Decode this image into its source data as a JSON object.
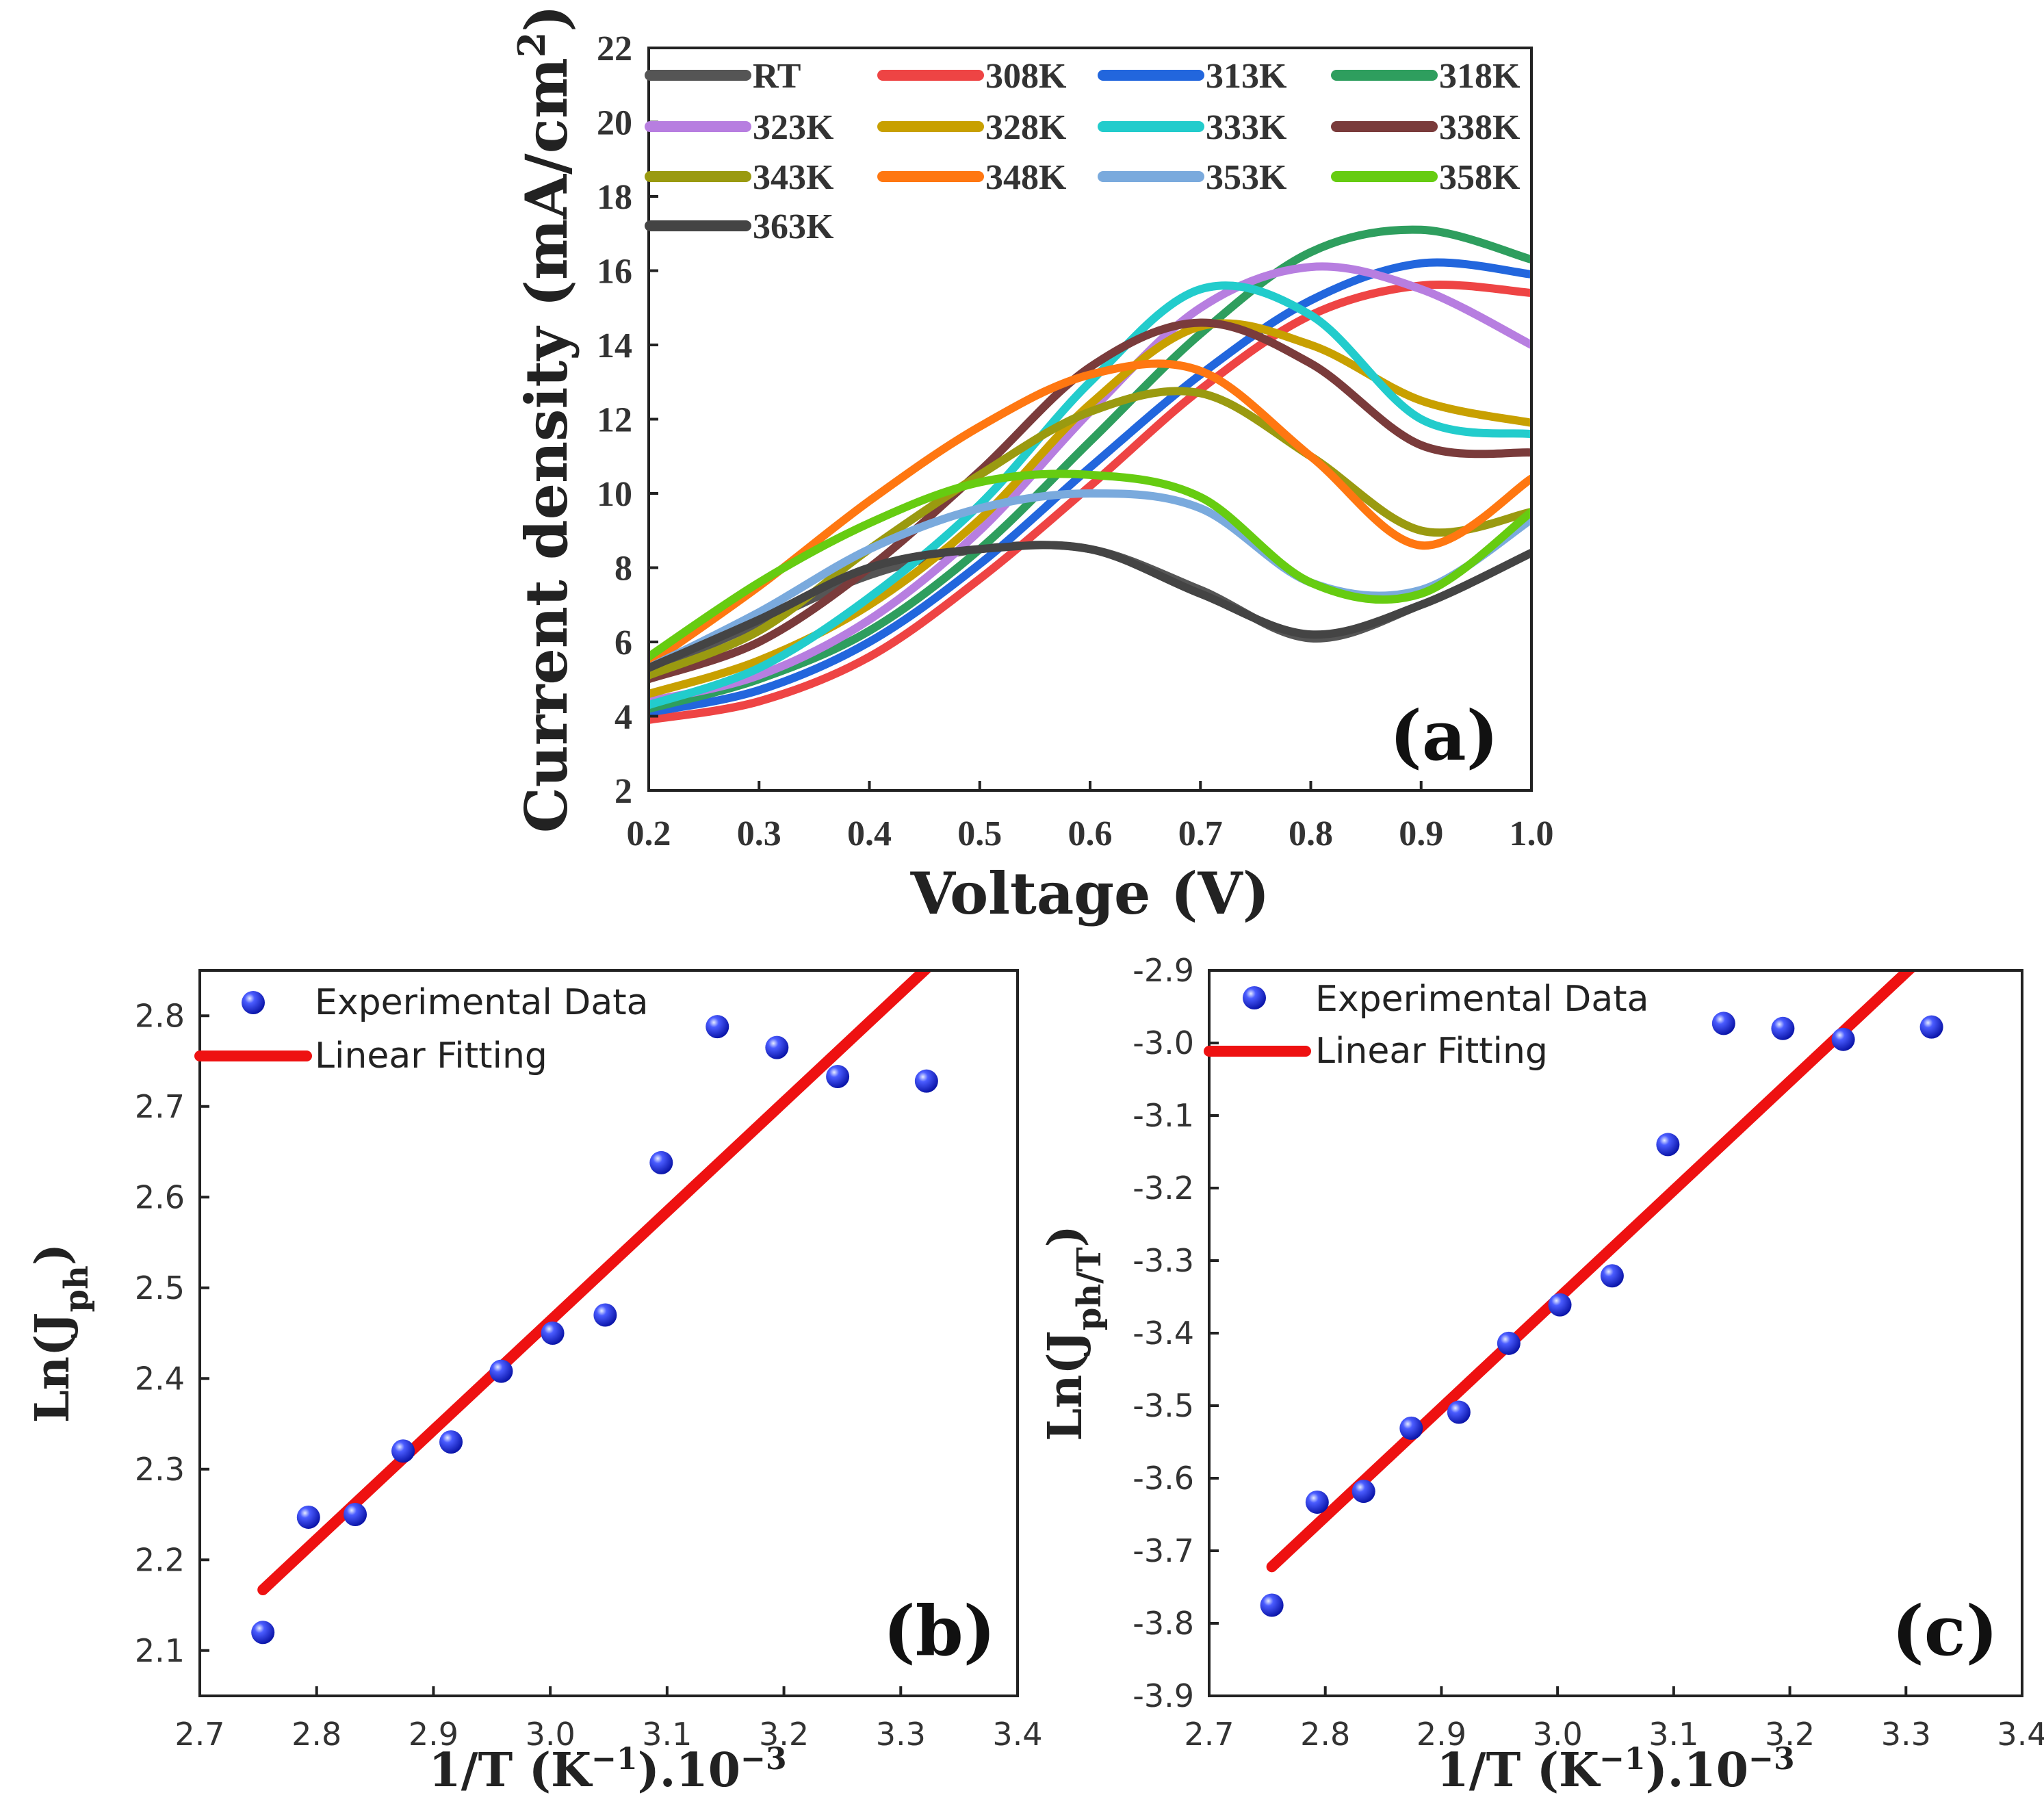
{
  "chart_data": [
    {
      "type": "line",
      "panel_label": "(a)",
      "xlabel": "Voltage (V)",
      "ylabel_main": "Current density (mA/cm",
      "ylabel_sup": "2",
      "ylabel_tail": ")",
      "xlim": [
        0.2,
        1.0
      ],
      "ylim": [
        2,
        22
      ],
      "xticks": [
        "0.2",
        "0.3",
        "0.4",
        "0.5",
        "0.6",
        "0.7",
        "0.8",
        "0.9",
        "1.0"
      ],
      "yticks": [
        "2",
        "4",
        "6",
        "8",
        "10",
        "12",
        "14",
        "16",
        "18",
        "20",
        "22"
      ],
      "series": [
        {
          "name": "RT",
          "color": "#555555",
          "x": [
            0.2,
            0.3,
            0.4,
            0.5,
            0.6,
            0.7,
            0.8,
            0.9,
            1.0
          ],
          "y": [
            5.2,
            6.5,
            7.8,
            8.5,
            8.5,
            7.4,
            6.1,
            7.0,
            8.4
          ]
        },
        {
          "name": "308K",
          "color": "#ee4444",
          "x": [
            0.2,
            0.3,
            0.4,
            0.5,
            0.6,
            0.7,
            0.8,
            0.9,
            1.0
          ],
          "y": [
            3.9,
            4.4,
            5.6,
            7.7,
            10.2,
            12.8,
            14.8,
            15.6,
            15.4
          ]
        },
        {
          "name": "313K",
          "color": "#2266dd",
          "x": [
            0.2,
            0.3,
            0.4,
            0.5,
            0.6,
            0.7,
            0.8,
            0.9,
            1.0
          ],
          "y": [
            4.1,
            4.7,
            6.0,
            8.1,
            10.7,
            13.2,
            15.2,
            16.2,
            15.9
          ]
        },
        {
          "name": "318K",
          "color": "#2e9e5e",
          "x": [
            0.2,
            0.3,
            0.4,
            0.5,
            0.6,
            0.7,
            0.8,
            0.9,
            1.0
          ],
          "y": [
            4.2,
            5.0,
            6.3,
            8.5,
            11.4,
            14.3,
            16.5,
            17.1,
            16.3
          ]
        },
        {
          "name": "323K",
          "color": "#b77ee0",
          "x": [
            0.2,
            0.3,
            0.4,
            0.5,
            0.6,
            0.7,
            0.8,
            0.9,
            1.0
          ],
          "y": [
            4.4,
            5.1,
            6.6,
            9.0,
            12.2,
            15.0,
            16.1,
            15.5,
            14.0
          ]
        },
        {
          "name": "328K",
          "color": "#c8a000",
          "x": [
            0.2,
            0.3,
            0.4,
            0.5,
            0.6,
            0.7,
            0.8,
            0.9,
            1.0
          ],
          "y": [
            4.6,
            5.5,
            7.0,
            9.3,
            12.4,
            14.5,
            14.0,
            12.5,
            11.9
          ]
        },
        {
          "name": "333K",
          "color": "#22cccc",
          "x": [
            0.2,
            0.3,
            0.4,
            0.5,
            0.6,
            0.7,
            0.8,
            0.9,
            1.0
          ],
          "y": [
            4.3,
            5.3,
            7.2,
            9.7,
            13.0,
            15.5,
            14.8,
            12.0,
            11.6
          ]
        },
        {
          "name": "338K",
          "color": "#7a3b3b",
          "x": [
            0.2,
            0.3,
            0.4,
            0.5,
            0.6,
            0.7,
            0.8,
            0.9,
            1.0
          ],
          "y": [
            5.0,
            6.0,
            8.0,
            10.6,
            13.4,
            14.6,
            13.5,
            11.3,
            11.1
          ]
        },
        {
          "name": "343K",
          "color": "#9a9a10",
          "x": [
            0.2,
            0.3,
            0.4,
            0.5,
            0.6,
            0.7,
            0.8,
            0.9,
            1.0
          ],
          "y": [
            5.1,
            6.3,
            8.5,
            10.5,
            12.2,
            12.7,
            11.0,
            9.0,
            9.5
          ]
        },
        {
          "name": "348K",
          "color": "#ff7711",
          "x": [
            0.2,
            0.3,
            0.4,
            0.5,
            0.6,
            0.7,
            0.8,
            0.9,
            1.0
          ],
          "y": [
            5.4,
            7.5,
            9.8,
            11.8,
            13.2,
            13.3,
            11.0,
            8.6,
            10.4
          ]
        },
        {
          "name": "353K",
          "color": "#7aaadd",
          "x": [
            0.2,
            0.3,
            0.4,
            0.5,
            0.6,
            0.7,
            0.8,
            0.9,
            1.0
          ],
          "y": [
            5.3,
            6.8,
            8.5,
            9.6,
            10.0,
            9.6,
            7.6,
            7.4,
            9.3
          ]
        },
        {
          "name": "358K",
          "color": "#66cc11",
          "x": [
            0.2,
            0.3,
            0.4,
            0.5,
            0.6,
            0.7,
            0.8,
            0.9,
            1.0
          ],
          "y": [
            5.6,
            7.6,
            9.2,
            10.3,
            10.5,
            9.9,
            7.6,
            7.3,
            9.5
          ]
        },
        {
          "name": "363K",
          "color": "#444444",
          "x": [
            0.2,
            0.3,
            0.4,
            0.5,
            0.6,
            0.7,
            0.8,
            0.9,
            1.0
          ],
          "y": [
            5.3,
            6.6,
            8.0,
            8.5,
            8.5,
            7.3,
            6.2,
            7.0,
            8.4
          ]
        }
      ]
    },
    {
      "type": "scatter",
      "panel_label": "(b)",
      "xlabel_main": "1/T (K",
      "xlabel_sup1": "−1",
      "xlabel_mid": ").10",
      "xlabel_sup2": "−3",
      "ylabel_main": "Ln(J",
      "ylabel_sub": "ph",
      "ylabel_tail": ")",
      "xlim": [
        2.7,
        3.4
      ],
      "ylim": [
        2.05,
        2.85
      ],
      "xticks": [
        "2.7",
        "2.8",
        "2.9",
        "3.0",
        "3.1",
        "3.2",
        "3.3",
        "3.4"
      ],
      "yticks": [
        "2.1",
        "2.2",
        "2.3",
        "2.4",
        "2.5",
        "2.6",
        "2.7",
        "2.8"
      ],
      "legend": {
        "scatter_label": "Experimental Data",
        "line_label": "Linear Fitting"
      },
      "points": {
        "x": [
          2.754,
          2.793,
          2.833,
          2.874,
          2.915,
          2.958,
          3.002,
          3.047,
          3.095,
          3.143,
          3.194,
          3.246,
          3.322
        ],
        "y": [
          2.12,
          2.247,
          2.25,
          2.32,
          2.33,
          2.408,
          2.45,
          2.47,
          2.638,
          2.788,
          2.765,
          2.733,
          2.728
        ]
      },
      "fit": {
        "x": [
          2.754,
          3.322
        ],
        "y": [
          2.167,
          2.852
        ]
      }
    },
    {
      "type": "scatter",
      "panel_label": "(c)",
      "xlabel_main": "1/T (K",
      "xlabel_sup1": "−1",
      "xlabel_mid": ").10",
      "xlabel_sup2": "−3",
      "ylabel_main": "Ln(J",
      "ylabel_sub": "ph/T",
      "ylabel_tail": ")",
      "xlim": [
        2.7,
        3.4
      ],
      "ylim": [
        -3.9,
        -2.9
      ],
      "xticks": [
        "2.7",
        "2.8",
        "2.9",
        "3.0",
        "3.1",
        "3.2",
        "3.3",
        "3.4"
      ],
      "yticks": [
        "-2.9",
        "-3.0",
        "-3.1",
        "-3.2",
        "-3.3",
        "-3.4",
        "-3.5",
        "-3.6",
        "-3.7",
        "-3.8",
        "-3.9"
      ],
      "legend": {
        "scatter_label": "Experimental Data",
        "line_label": "Linear Fitting"
      },
      "points": {
        "x": [
          2.754,
          2.793,
          2.833,
          2.874,
          2.915,
          2.958,
          3.002,
          3.047,
          3.095,
          3.143,
          3.194,
          3.246,
          3.322
        ],
        "y": [
          -3.775,
          -3.633,
          -3.618,
          -3.531,
          -3.509,
          -3.414,
          -3.361,
          -3.321,
          -3.14,
          -2.973,
          -2.98,
          -2.995,
          -2.978
        ]
      },
      "fit": {
        "x": [
          2.754,
          3.322
        ],
        "y": [
          -3.722,
          -2.87
        ]
      }
    }
  ]
}
